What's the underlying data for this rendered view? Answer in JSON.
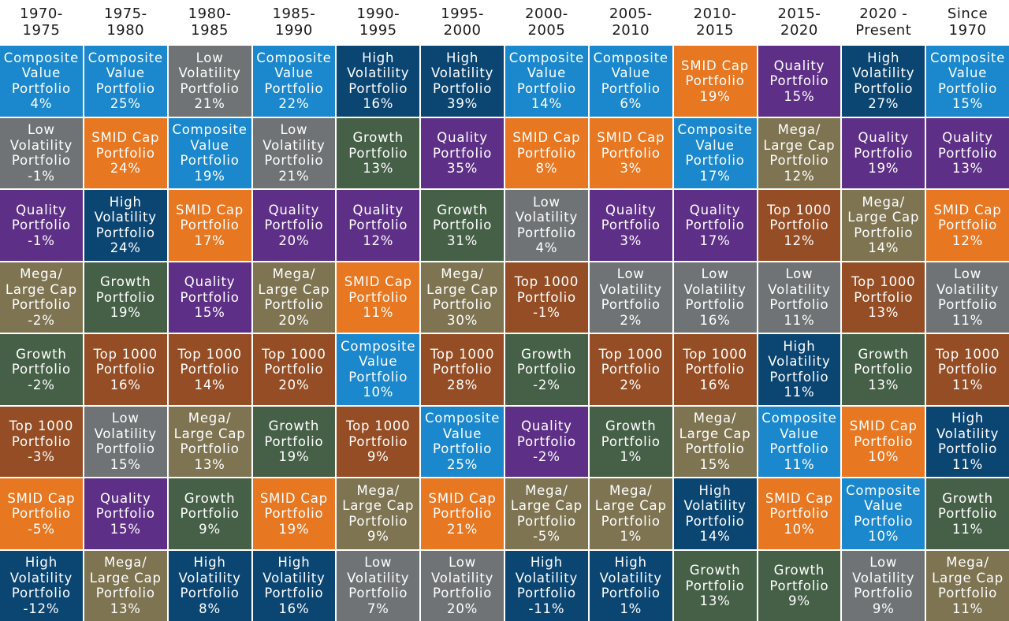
{
  "chart_data": {
    "type": "table",
    "columns": [
      "1970-\n1975",
      "1975-\n1980",
      "1980-\n1985",
      "1985-\n1990",
      "1990-\n1995",
      "1995-\n2000",
      "2000-\n2005",
      "2005-\n2010",
      "2010-\n2015",
      "2015-\n2020",
      "2020 -\nPresent",
      "Since\n1970"
    ],
    "colors": {
      "Composite Value Portfolio": "#1b87cc",
      "Low Volatility Portfolio": "#707375",
      "Quality Portfolio": "#5e2f86",
      "Mega/ Large Cap Portfolio": "#7e7452",
      "Growth Portfolio": "#466047",
      "Top 1000 Portfolio": "#944d24",
      "SMID Cap Portfolio": "#e87722",
      "High Volatility Portfolio": "#0b4572"
    },
    "display_names": {
      "Composite Value Portfolio": "Composite\nValue\nPortfolio",
      "Low Volatility Portfolio": "Low\nVolatility\nPortfolio",
      "Quality Portfolio": "Quality\nPortfolio",
      "Mega/ Large Cap Portfolio": "Mega/\nLarge Cap\nPortfolio",
      "Growth Portfolio": "Growth\nPortfolio",
      "Top 1000 Portfolio": "Top 1000\nPortfolio",
      "SMID Cap Portfolio": "SMID Cap\nPortfolio",
      "High Volatility Portfolio": "High\nVolatility\nPortfolio"
    },
    "rankings": [
      [
        {
          "name": "Composite Value Portfolio",
          "value": "4%"
        },
        {
          "name": "Low Volatility Portfolio",
          "value": "-1%"
        },
        {
          "name": "Quality Portfolio",
          "value": "-1%"
        },
        {
          "name": "Mega/ Large Cap Portfolio",
          "value": "-2%"
        },
        {
          "name": "Growth Portfolio",
          "value": "-2%"
        },
        {
          "name": "Top 1000 Portfolio",
          "value": "-3%"
        },
        {
          "name": "SMID Cap Portfolio",
          "value": "-5%"
        },
        {
          "name": "High Volatility Portfolio",
          "value": "-12%"
        }
      ],
      [
        {
          "name": "Composite Value Portfolio",
          "value": "25%"
        },
        {
          "name": "SMID Cap Portfolio",
          "value": "24%"
        },
        {
          "name": "High Volatility Portfolio",
          "value": "24%"
        },
        {
          "name": "Growth Portfolio",
          "value": "19%"
        },
        {
          "name": "Top 1000 Portfolio",
          "value": "16%"
        },
        {
          "name": "Low Volatility Portfolio",
          "value": "15%"
        },
        {
          "name": "Quality Portfolio",
          "value": "15%"
        },
        {
          "name": "Mega/ Large Cap Portfolio",
          "value": "13%"
        }
      ],
      [
        {
          "name": "Low Volatility Portfolio",
          "value": "21%"
        },
        {
          "name": "Composite Value Portfolio",
          "value": "19%"
        },
        {
          "name": "SMID Cap Portfolio",
          "value": "17%"
        },
        {
          "name": "Quality Portfolio",
          "value": "15%"
        },
        {
          "name": "Top 1000 Portfolio",
          "value": "14%"
        },
        {
          "name": "Mega/ Large Cap Portfolio",
          "value": "13%"
        },
        {
          "name": "Growth Portfolio",
          "value": "9%"
        },
        {
          "name": "High Volatility Portfolio",
          "value": "8%"
        }
      ],
      [
        {
          "name": "Composite Value Portfolio",
          "value": "22%"
        },
        {
          "name": "Low Volatility Portfolio",
          "value": "21%"
        },
        {
          "name": "Quality Portfolio",
          "value": "20%"
        },
        {
          "name": "Mega/ Large Cap Portfolio",
          "value": "20%"
        },
        {
          "name": "Top 1000 Portfolio",
          "value": "20%"
        },
        {
          "name": "Growth Portfolio",
          "value": "19%"
        },
        {
          "name": "SMID Cap Portfolio",
          "value": "19%"
        },
        {
          "name": "High Volatility Portfolio",
          "value": "16%"
        }
      ],
      [
        {
          "name": "High Volatility Portfolio",
          "value": "16%"
        },
        {
          "name": "Growth Portfolio",
          "value": "13%"
        },
        {
          "name": "Quality Portfolio",
          "value": "12%"
        },
        {
          "name": "SMID Cap Portfolio",
          "value": "11%"
        },
        {
          "name": "Composite Value Portfolio",
          "value": "10%"
        },
        {
          "name": "Top 1000 Portfolio",
          "value": "9%"
        },
        {
          "name": "Mega/ Large Cap Portfolio",
          "value": "9%"
        },
        {
          "name": "Low Volatility Portfolio",
          "value": "7%"
        }
      ],
      [
        {
          "name": "High Volatility Portfolio",
          "value": "39%"
        },
        {
          "name": "Quality Portfolio",
          "value": "35%"
        },
        {
          "name": "Growth Portfolio",
          "value": "31%"
        },
        {
          "name": "Mega/ Large Cap Portfolio",
          "value": "30%"
        },
        {
          "name": "Top 1000 Portfolio",
          "value": "28%"
        },
        {
          "name": "Composite Value Portfolio",
          "value": "25%"
        },
        {
          "name": "SMID Cap Portfolio",
          "value": "21%"
        },
        {
          "name": "Low Volatility Portfolio",
          "value": "20%"
        }
      ],
      [
        {
          "name": "Composite Value Portfolio",
          "value": "14%"
        },
        {
          "name": "SMID Cap Portfolio",
          "value": "8%"
        },
        {
          "name": "Low Volatility Portfolio",
          "value": "4%"
        },
        {
          "name": "Top 1000 Portfolio",
          "value": "-1%"
        },
        {
          "name": "Growth Portfolio",
          "value": "-2%"
        },
        {
          "name": "Quality Portfolio",
          "value": "-2%"
        },
        {
          "name": "Mega/ Large Cap Portfolio",
          "value": "-5%"
        },
        {
          "name": "High Volatility Portfolio",
          "value": "-11%"
        }
      ],
      [
        {
          "name": "Composite Value Portfolio",
          "value": "6%"
        },
        {
          "name": "SMID Cap Portfolio",
          "value": "3%"
        },
        {
          "name": "Quality Portfolio",
          "value": "3%"
        },
        {
          "name": "Low Volatility Portfolio",
          "value": "2%"
        },
        {
          "name": "Top 1000 Portfolio",
          "value": "2%"
        },
        {
          "name": "Growth Portfolio",
          "value": "1%"
        },
        {
          "name": "Mega/ Large Cap Portfolio",
          "value": "1%"
        },
        {
          "name": "High Volatility Portfolio",
          "value": "1%"
        }
      ],
      [
        {
          "name": "SMID Cap Portfolio",
          "value": "19%"
        },
        {
          "name": "Composite Value Portfolio",
          "value": "17%"
        },
        {
          "name": "Quality Portfolio",
          "value": "17%"
        },
        {
          "name": "Low Volatility Portfolio",
          "value": "16%"
        },
        {
          "name": "Top 1000 Portfolio",
          "value": "16%"
        },
        {
          "name": "Mega/ Large Cap Portfolio",
          "value": "15%"
        },
        {
          "name": "High Volatility Portfolio",
          "value": "14%"
        },
        {
          "name": "Growth Portfolio",
          "value": "13%"
        }
      ],
      [
        {
          "name": "Quality Portfolio",
          "value": "15%"
        },
        {
          "name": "Mega/ Large Cap Portfolio",
          "value": "12%"
        },
        {
          "name": "Top 1000 Portfolio",
          "value": "12%"
        },
        {
          "name": "Low Volatility Portfolio",
          "value": "11%"
        },
        {
          "name": "High Volatility Portfolio",
          "value": "11%"
        },
        {
          "name": "Composite Value Portfolio",
          "value": "11%"
        },
        {
          "name": "SMID Cap Portfolio",
          "value": "10%"
        },
        {
          "name": "Growth Portfolio",
          "value": "9%"
        }
      ],
      [
        {
          "name": "High Volatility Portfolio",
          "value": "27%"
        },
        {
          "name": "Quality Portfolio",
          "value": "19%"
        },
        {
          "name": "Mega/ Large Cap Portfolio",
          "value": "14%"
        },
        {
          "name": "Top 1000 Portfolio",
          "value": "13%"
        },
        {
          "name": "Growth Portfolio",
          "value": "13%"
        },
        {
          "name": "SMID Cap Portfolio",
          "value": "10%"
        },
        {
          "name": "Composite Value Portfolio",
          "value": "10%"
        },
        {
          "name": "Low Volatility Portfolio",
          "value": "9%"
        }
      ],
      [
        {
          "name": "Composite Value Portfolio",
          "value": "15%"
        },
        {
          "name": "Quality Portfolio",
          "value": "13%"
        },
        {
          "name": "SMID Cap Portfolio",
          "value": "12%"
        },
        {
          "name": "Low Volatility Portfolio",
          "value": "11%"
        },
        {
          "name": "Top 1000 Portfolio",
          "value": "11%"
        },
        {
          "name": "High Volatility Portfolio",
          "value": "11%"
        },
        {
          "name": "Growth Portfolio",
          "value": "11%"
        },
        {
          "name": "Mega/ Large Cap Portfolio",
          "value": "11%"
        }
      ]
    ]
  }
}
